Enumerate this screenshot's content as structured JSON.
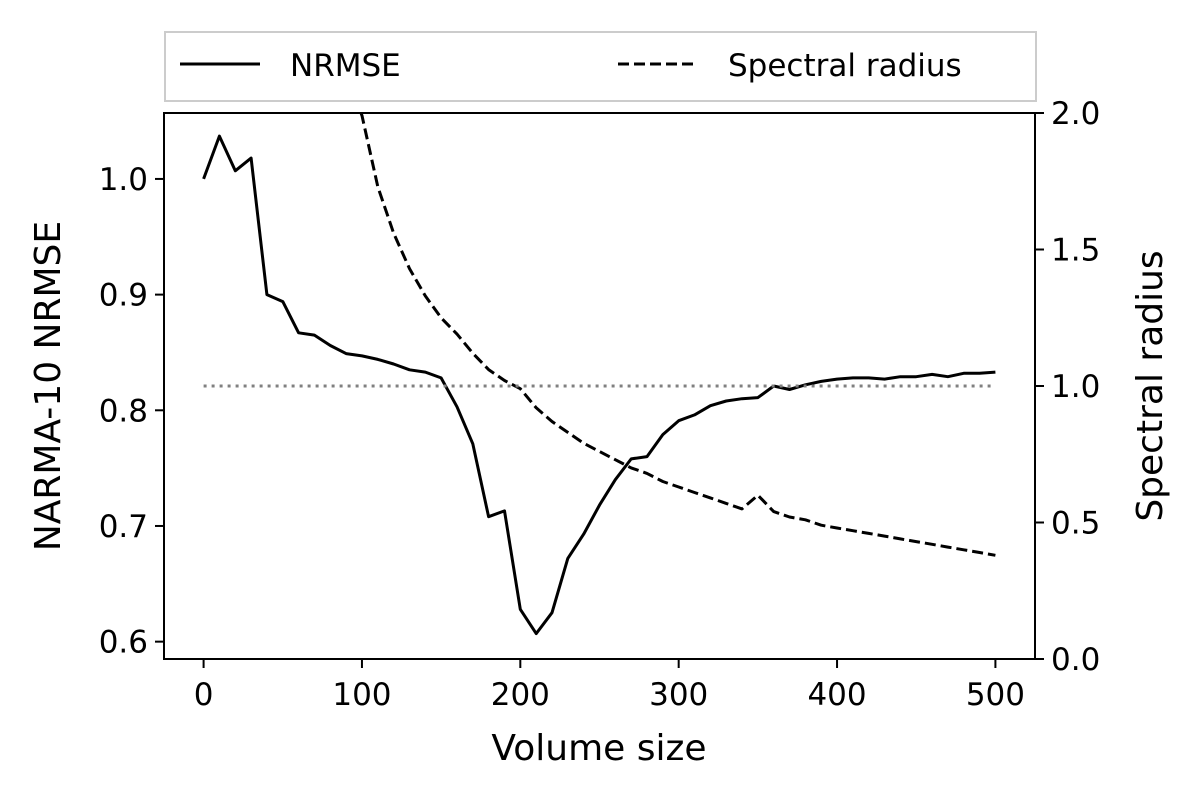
{
  "chart_data": {
    "type": "line",
    "xlabel": "Volume size",
    "ylabel": "NARMA-10 NRMSE",
    "y2label": "Spectral radius",
    "xlim": [
      -25,
      525
    ],
    "ylim": [
      0.585,
      1.057
    ],
    "y2lim": [
      0.0,
      2.0
    ],
    "xticks": [
      0,
      100,
      200,
      300,
      400,
      500
    ],
    "yticks": [
      0.6,
      0.7,
      0.8,
      0.9,
      1.0
    ],
    "y2ticks": [
      0.0,
      0.5,
      1.0,
      1.5,
      2.0
    ],
    "grid": false,
    "legend": {
      "placement": "top",
      "columns": 2
    },
    "x": [
      0,
      10,
      20,
      30,
      40,
      50,
      60,
      70,
      80,
      90,
      100,
      110,
      120,
      130,
      140,
      150,
      160,
      170,
      180,
      190,
      200,
      210,
      220,
      230,
      240,
      250,
      260,
      270,
      280,
      290,
      300,
      310,
      320,
      330,
      340,
      350,
      360,
      370,
      380,
      390,
      400,
      410,
      420,
      430,
      440,
      450,
      460,
      470,
      480,
      490,
      500
    ],
    "series": [
      {
        "name": "NRMSE",
        "axis": "left",
        "style": "solid",
        "color": "#000000",
        "values": [
          1.0,
          1.037,
          1.007,
          1.018,
          0.9,
          0.894,
          0.867,
          0.865,
          0.856,
          0.849,
          0.847,
          0.844,
          0.84,
          0.835,
          0.833,
          0.828,
          0.803,
          0.771,
          0.708,
          0.713,
          0.628,
          0.607,
          0.625,
          0.672,
          0.693,
          0.718,
          0.74,
          0.758,
          0.76,
          0.779,
          0.791,
          0.796,
          0.804,
          0.808,
          0.81,
          0.811,
          0.821,
          0.818,
          0.822,
          0.825,
          0.827,
          0.828,
          0.828,
          0.827,
          0.829,
          0.829,
          0.831,
          0.829,
          0.832,
          0.832,
          0.833
        ]
      },
      {
        "name": "Spectral radius",
        "axis": "right",
        "style": "dashed",
        "color": "#000000",
        "values": [
          null,
          null,
          null,
          null,
          null,
          null,
          null,
          null,
          null,
          null,
          1.99,
          1.73,
          1.56,
          1.43,
          1.33,
          1.25,
          1.19,
          1.12,
          1.06,
          1.02,
          0.99,
          0.92,
          0.87,
          0.83,
          0.79,
          0.76,
          0.73,
          0.7,
          0.68,
          0.65,
          0.63,
          0.61,
          0.59,
          0.57,
          0.55,
          0.6,
          0.54,
          0.52,
          0.51,
          0.49,
          0.48,
          0.47,
          0.46,
          0.45,
          0.44,
          0.43,
          0.42,
          0.41,
          0.4,
          0.39,
          0.38
        ]
      },
      {
        "name": "",
        "axis": "right",
        "style": "dotted",
        "color": "#808080",
        "x": [
          0,
          500
        ],
        "values": [
          1.0,
          1.0
        ]
      }
    ]
  }
}
